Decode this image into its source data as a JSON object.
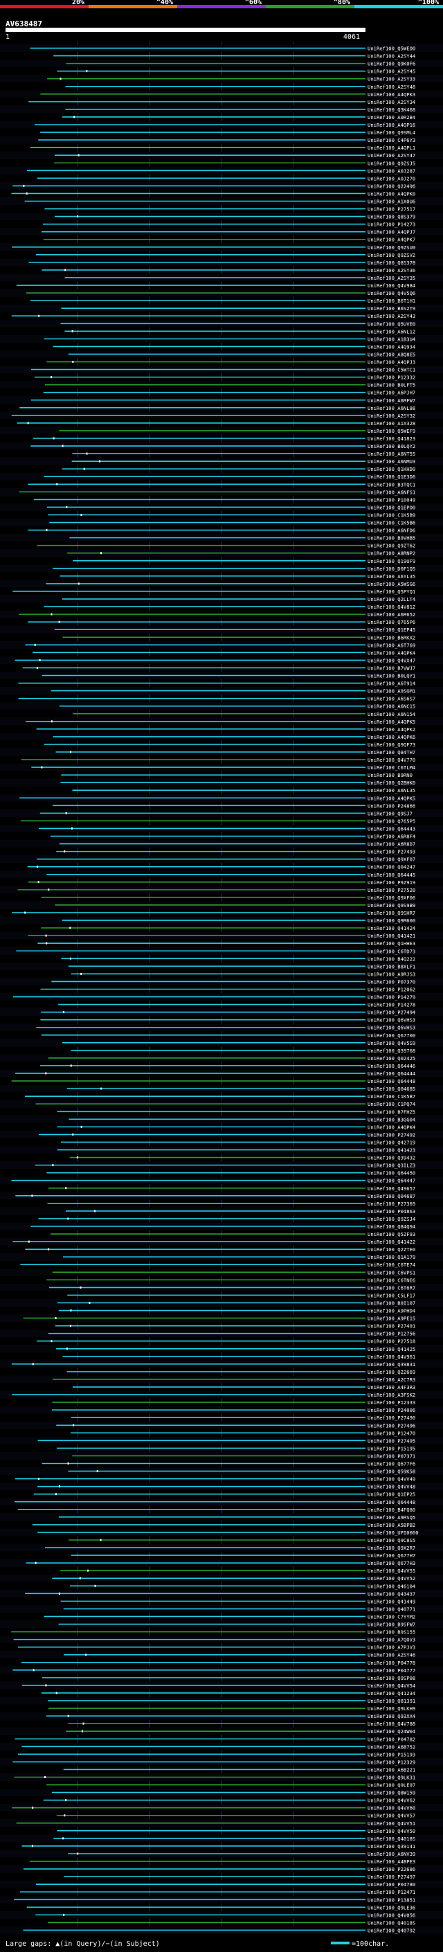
{
  "chart_data": {
    "type": "alignment-overview",
    "title": "AV638487",
    "scale": {
      "start_label": "1",
      "end_label": "4061",
      "query_length": 4061
    },
    "identity_legend": [
      {
        "label": "20%",
        "color": "#e8102a"
      },
      {
        "label": "^40%",
        "color": "#e07a10"
      },
      {
        "label": "^60%",
        "color": "#8a2bd6"
      },
      {
        "label": "^80%",
        "color": "#2aa02a"
      },
      {
        "label": "^100%",
        "color": "#1ed0e8"
      }
    ],
    "footer": {
      "left": "Large gaps: ▲(in Query)/−(in Subject)",
      "right": "=100char."
    },
    "hits": [
      "UniRef100_Q5WEO0",
      "UniRef100_A2SY44",
      "UniRef100_Q9K0F6",
      "UniRef100_A2SY45",
      "UniRef100_A2SY33",
      "UniRef100_A2SY48",
      "UniRef100_A4QPK3",
      "UniRef100_A2SY34",
      "UniRef100_Q3K468",
      "UniRef100_A0R2B4",
      "UniRef100_A4QP16",
      "UniRef100_Q9SML4",
      "UniRef100_C4P6Y3",
      "UniRef100_A4QPL1",
      "UniRef100_A2SY47",
      "UniRef100_Q9ZSJ5",
      "UniRef100_A0J287",
      "UniRef100_A0J270",
      "UniRef100_Q22496",
      "UniRef100_A4QPK0",
      "UniRef100_A1X0U6",
      "UniRef100_P27517",
      "UniRef100_Q8S379",
      "UniRef100_P14273",
      "UniRef100_A4QPJ7",
      "UniRef100_A4QPK7",
      "UniRef100_Q9ZSU0",
      "UniRef100_Q9ZSV2",
      "UniRef100_Q8S378",
      "UniRef100_A2SY36",
      "UniRef100_A2SY35",
      "UniRef100_Q4V984",
      "UniRef100_Q4V5Q6",
      "UniRef100_B6T1H1",
      "UniRef100_B6S2T9",
      "UniRef100_A2SY43",
      "UniRef100_Q5UVE0",
      "UniRef100_A6NL12",
      "UniRef100_A1B3U4",
      "UniRef100_A4Q934",
      "UniRef100_A8Q8E5",
      "UniRef100_A4QPJ3",
      "UniRef100_C5WTC1",
      "UniRef100_P12332",
      "UniRef100_B0LFT5",
      "UniRef100_A6PJH7",
      "UniRef100_A6MFW7",
      "UniRef100_A6NL88",
      "UniRef100_A2SY32",
      "UniRef100_A1X328",
      "UniRef100_Q5WEF9",
      "UniRef100_Q41823",
      "UniRef100_B0LQY2",
      "UniRef100_A6NT55",
      "UniRef100_A6NMU3",
      "UniRef100_Q1KHD0",
      "UniRef100_Q1E3D6",
      "UniRef100_B3TQC1",
      "UniRef100_A6NFS1",
      "UniRef100_P10049",
      "UniRef100_Q1EPO0",
      "UniRef100_C1K5B9",
      "UniRef100_C1K5B6",
      "UniRef100_A6NFD6",
      "UniRef100_B9VHB5",
      "UniRef100_Q9ZT62",
      "UniRef100_A8RNP2",
      "UniRef100_Q19UF9",
      "UniRef100_D0F1Q5",
      "UniRef100_A6YL35",
      "UniRef100_A5WSG6",
      "UniRef100_Q5PYQ1",
      "UniRef100_Q2LLT4",
      "UniRef100_Q4V812",
      "UniRef100_A6R652",
      "UniRef100_Q765P6",
      "UniRef100_Q1EP45",
      "UniRef100_B6RKX2",
      "UniRef100_A6T769",
      "UniRef100_A4QPK4",
      "UniRef100_Q4VX47",
      "UniRef100_B7VWJ7",
      "UniRef100_B0LQY1",
      "UniRef100_A6T914",
      "UniRef100_A9SGM1",
      "UniRef100_A6S6S7",
      "UniRef100_A6NC15",
      "UniRef100_A6N154",
      "UniRef100_A4QPK5",
      "UniRef100_A4QPK2",
      "UniRef100_A4QPK6",
      "UniRef100_Q9QF73",
      "UniRef100_Q84TH7",
      "UniRef100_Q4V770",
      "UniRef100_C6TLM4",
      "UniRef100_B9RN0",
      "UniRef100_Q2BHK0",
      "UniRef100_A6NL35",
      "UniRef100_A4QPK5",
      "UniRef100_P24866",
      "UniRef100_Q9SJ7",
      "UniRef100_Q765P5",
      "UniRef100_Q64443",
      "UniRef100_A6R8F4",
      "UniRef100_A6R8D7",
      "UniRef100_P27493",
      "UniRef100_Q9XF07",
      "UniRef100_Q04247",
      "UniRef100_Q64445",
      "UniRef100_P9Z919",
      "UniRef100_P27520",
      "UniRef100_Q9XF06",
      "UniRef100_Q9S9B9",
      "UniRef100_Q9SHR7",
      "UniRef100_Q9M600",
      "UniRef100_Q41424",
      "UniRef100_Q41421",
      "UniRef100_Q1HHE3",
      "UniRef100_C6TD73",
      "UniRef100_B4Q222",
      "UniRef100_B8XLF1",
      "UniRef100_A9RJS3",
      "UniRef100_P07370",
      "UniRef100_P12062",
      "UniRef100_P14279",
      "UniRef100_P14278",
      "UniRef100_P27494",
      "UniRef100_Q6VHS3",
      "UniRef100_Q6VHS3",
      "UniRef100_Q67700",
      "UniRef100_Q4V5S9",
      "UniRef100_Q39768",
      "UniRef100_Q02425",
      "UniRef100_Q64446",
      "UniRef100_Q64444",
      "UniRef100_Q64448",
      "UniRef100_Q04685",
      "UniRef100_C1K5B7",
      "UniRef100_C1PQ74",
      "UniRef100_B7FHZ5",
      "UniRef100_B3GG04",
      "UniRef100_A4QPK4",
      "UniRef100_P27492",
      "UniRef100_Q42719",
      "UniRef100_Q41423",
      "UniRef100_Q39432",
      "UniRef100_Q3ILZ3",
      "UniRef100_Q64450",
      "UniRef100_Q64447",
      "UniRef100_Q49657",
      "UniRef100_Q04687",
      "UniRef100_P27369",
      "UniRef100_P04863",
      "UniRef100_Q9ZSJ4",
      "UniRef100_Q84Q94",
      "UniRef100_Q5ZF93",
      "UniRef100_Q41422",
      "UniRef100_Q2ZTE0",
      "UniRef100_Q1A179",
      "UniRef100_C6TE74",
      "UniRef100_C6VPS1",
      "UniRef100_C6TNE6",
      "UniRef100_C6T6R7",
      "UniRef100_C5LF17",
      "UniRef100_B9I107",
      "UniRef100_A9PHD4",
      "UniRef100_A9PE15",
      "UniRef100_P27491",
      "UniRef100_P12756",
      "UniRef100_P27518",
      "UniRef100_Q41425",
      "UniRef100_Q4V961",
      "UniRef100_Q39831",
      "UniRef100_Q22669",
      "UniRef100_A2C7R3",
      "UniRef100_A4F3R3",
      "UniRef100_A3FSK2",
      "UniRef100_P12333",
      "UniRef100_P24006",
      "UniRef100_P27490",
      "UniRef100_P27496",
      "UniRef100_P12470",
      "UniRef100_P27495",
      "UniRef100_P15195",
      "UniRef100_P07371",
      "UniRef100_Q677F6",
      "UniRef100_Q59K58",
      "UniRef100_Q4VV49",
      "UniRef100_Q4VV48",
      "UniRef100_Q1EP25",
      "UniRef100_Q64448",
      "UniRef100_B4FQ80",
      "UniRef100_A9RSQ5",
      "UniRef100_A5BPB2",
      "UniRef100_UPI0000",
      "UniRef100_Q9C8S5",
      "UniRef100_Q9X2R7",
      "UniRef100_Q677H7",
      "UniRef100_Q677H3",
      "UniRef100_Q4VV55",
      "UniRef100_Q4VV52",
      "UniRef100_Q46104",
      "UniRef100_Q43437",
      "UniRef100_Q41449",
      "UniRef100_Q40771",
      "UniRef100_C7YYM2",
      "UniRef100_B9SFW7",
      "UniRef100_B9S155",
      "UniRef100_A7QOV3",
      "UniRef100_A7PJV3",
      "UniRef100_A2SY46",
      "UniRef100_P04778",
      "UniRef100_P04777",
      "UniRef100_Q9SP08",
      "UniRef100_Q4VV54",
      "UniRef100_Q41234",
      "UniRef100_Q81391",
      "UniRef100_Q9LKH9",
      "UniRef100_Q93XX4",
      "UniRef100_Q4V788",
      "UniRef100_Q24W04",
      "UniRef100_P04782",
      "UniRef100_A6B752",
      "UniRef100_P15193",
      "UniRef100_P12329",
      "UniRef100_A6B221",
      "UniRef100_Q9LK31",
      "UniRef100_Q9LE97",
      "UniRef100_Q8W159",
      "UniRef100_Q4VV62",
      "UniRef100_Q4VV60",
      "UniRef100_Q4VV57",
      "UniRef100_Q4VV51",
      "UniRef100_Q4VV50",
      "UniRef100_Q4018S",
      "UniRef100_Q39141",
      "UniRef100_A6NV39",
      "UniRef100_A4BPE3",
      "UniRef100_P22686",
      "UniRef100_P27497",
      "UniRef100_P04780",
      "UniRef100_P12471",
      "UniRef100_P13851",
      "UniRef100_Q9LE36",
      "UniRef100_Q4V056",
      "UniRef100_Q4018S",
      "UniRef100_Q40792"
    ]
  }
}
